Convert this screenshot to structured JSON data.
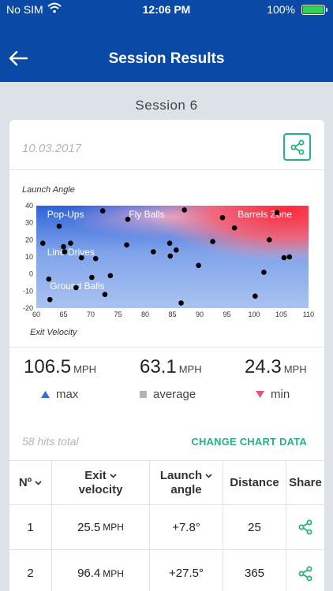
{
  "status_bar": {
    "carrier": "No SIM",
    "time": "12:06 PM",
    "battery": "100%"
  },
  "nav": {
    "title": "Session Results"
  },
  "session": {
    "name": "Session 6",
    "date": "10.03.2017"
  },
  "chart_data": {
    "type": "scatter",
    "xlabel": "Exit Velocity",
    "ylabel": "Launch Angle",
    "xlim": [
      60,
      110
    ],
    "ylim": [
      -20,
      40
    ],
    "xticks": [
      60,
      65,
      70,
      75,
      80,
      85,
      90,
      95,
      100,
      105,
      110
    ],
    "yticks": [
      -20,
      -10,
      0,
      10,
      20,
      30,
      40
    ],
    "grid": false,
    "zones": [
      {
        "label": "Pop-Ups",
        "at": [
          62,
          33
        ]
      },
      {
        "label": "Fly Balls",
        "at": [
          77,
          33
        ]
      },
      {
        "label": "Barrels Zone",
        "at": [
          97,
          33
        ]
      },
      {
        "label": "Line Drives",
        "at": [
          62,
          11
        ]
      },
      {
        "label": "Ground Balls",
        "at": [
          62.5,
          -9
        ]
      }
    ],
    "points": [
      [
        61.2,
        18
      ],
      [
        62.3,
        -3
      ],
      [
        62.5,
        -15
      ],
      [
        64.2,
        28
      ],
      [
        65.0,
        16
      ],
      [
        65.2,
        13
      ],
      [
        66.3,
        18
      ],
      [
        67.3,
        -8
      ],
      [
        68.3,
        9.5
      ],
      [
        70.2,
        -2
      ],
      [
        70.9,
        9
      ],
      [
        72.2,
        37
      ],
      [
        72.6,
        -12
      ],
      [
        73.6,
        -1
      ],
      [
        76.6,
        17
      ],
      [
        76.8,
        32
      ],
      [
        81.5,
        13
      ],
      [
        84.5,
        18
      ],
      [
        84.6,
        10.5
      ],
      [
        85.7,
        14
      ],
      [
        86.6,
        -17
      ],
      [
        87.2,
        37.5
      ],
      [
        89.8,
        5
      ],
      [
        92.4,
        19
      ],
      [
        94.2,
        33
      ],
      [
        96.4,
        27
      ],
      [
        100.2,
        -13
      ],
      [
        101.8,
        1
      ],
      [
        102.8,
        20
      ],
      [
        104.2,
        36
      ],
      [
        105.5,
        9.5
      ],
      [
        106.5,
        10
      ]
    ]
  },
  "stats": {
    "max": {
      "value": "106.5",
      "unit": "MPH",
      "label": "max",
      "color": "#2f6fd6"
    },
    "average": {
      "value": "63.1",
      "unit": "MPH",
      "label": "average",
      "color": "#b4b4b4"
    },
    "min": {
      "value": "24.3",
      "unit": "MPH",
      "label": "min",
      "color": "#e8517a"
    }
  },
  "hits_total": "58 hits total",
  "change_chart_label": "CHANGE CHART DATA",
  "accent_color": "#2ab07f",
  "table": {
    "headers": {
      "no": "Nº",
      "exit_velocity_line1": "Exit",
      "exit_velocity_line2": "velocity",
      "launch_angle_line1": "Launch",
      "launch_angle_line2": "angle",
      "distance": "Distance",
      "share": "Share"
    },
    "rows": [
      {
        "no": "1",
        "exit_velocity": "25.5",
        "unit": "MPH",
        "launch_angle": "+7.8°",
        "distance": "25"
      },
      {
        "no": "2",
        "exit_velocity": "96.4",
        "unit": "MPH",
        "launch_angle": "+27.5°",
        "distance": "365"
      }
    ]
  }
}
